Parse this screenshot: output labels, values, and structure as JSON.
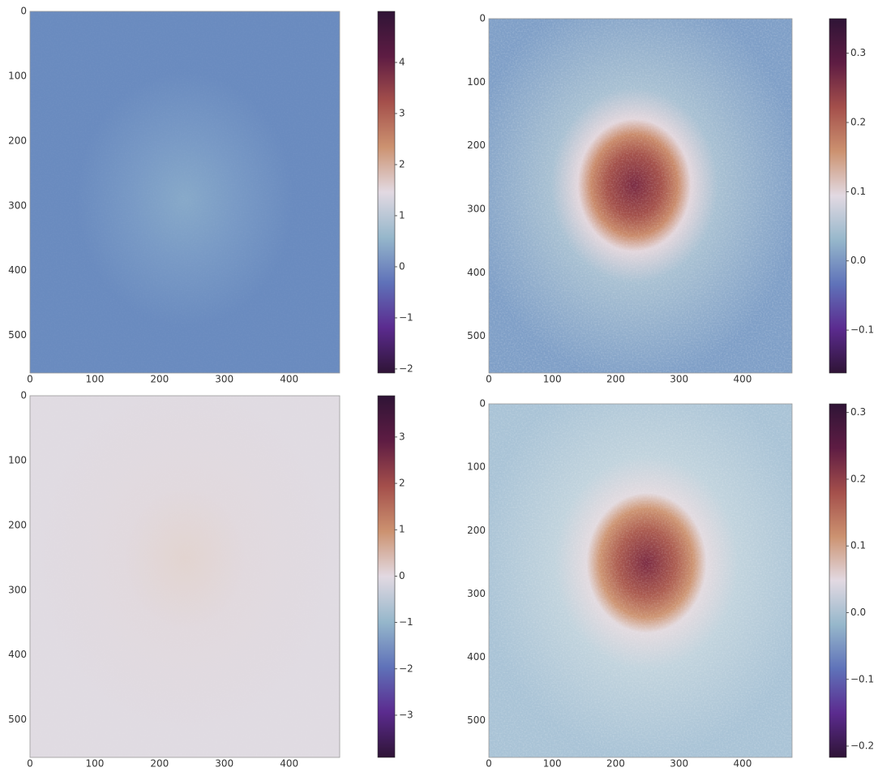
{
  "chart_data": [
    {
      "type": "heatmap",
      "y_inverted": true,
      "xlim": [
        0,
        478
      ],
      "ylim": [
        0,
        558
      ],
      "xticks": [
        0,
        100,
        200,
        300,
        400
      ],
      "yticks": [
        0,
        100,
        200,
        300,
        400,
        500
      ],
      "clim": [
        -2.08,
        5.0
      ],
      "cticks": [
        {
          "value": -2,
          "label": "−2"
        },
        {
          "value": -1,
          "label": "−1"
        },
        0,
        1,
        2,
        3,
        4
      ],
      "colormap": [
        "#2f1436",
        "#5b2b8f",
        "#5f72b9",
        "#96b7cb",
        "#e2d9e2",
        "#cc9270",
        "#a44f4b",
        "#5e1c43",
        "#2f1436"
      ]
    },
    {
      "type": "heatmap",
      "y_inverted": true,
      "xlim": [
        0,
        478
      ],
      "ylim": [
        0,
        558
      ],
      "xticks": [
        0,
        100,
        200,
        300,
        400
      ],
      "yticks": [
        0,
        100,
        200,
        300,
        400,
        500
      ],
      "clim": [
        -0.162,
        0.35
      ],
      "cticks": [
        {
          "value": -0.1,
          "label": "−0.1"
        },
        {
          "value": 0,
          "label": "0.0"
        },
        0.1,
        0.2,
        0.3
      ],
      "colormap": [
        "#2f1436",
        "#5b2b8f",
        "#5f72b9",
        "#96b7cb",
        "#e2d9e2",
        "#cc9270",
        "#a44f4b",
        "#5e1c43",
        "#2f1436"
      ]
    },
    {
      "type": "heatmap",
      "y_inverted": true,
      "xlim": [
        0,
        478
      ],
      "ylim": [
        0,
        558
      ],
      "xticks": [
        0,
        100,
        200,
        300,
        400
      ],
      "yticks": [
        0,
        100,
        200,
        300,
        400,
        500
      ],
      "clim": [
        -3.91,
        3.89
      ],
      "cticks": [
        {
          "value": -3,
          "label": "−3"
        },
        {
          "value": -2,
          "label": "−2"
        },
        {
          "value": -1,
          "label": "−1"
        },
        0,
        1,
        2,
        3
      ],
      "colormap": [
        "#2f1436",
        "#5b2b8f",
        "#5f72b9",
        "#96b7cb",
        "#e2d9e2",
        "#cc9270",
        "#a44f4b",
        "#5e1c43",
        "#2f1436"
      ]
    },
    {
      "type": "heatmap",
      "y_inverted": true,
      "xlim": [
        0,
        478
      ],
      "ylim": [
        0,
        558
      ],
      "xticks": [
        0,
        100,
        200,
        300,
        400
      ],
      "yticks": [
        0,
        100,
        200,
        300,
        400,
        500
      ],
      "clim": [
        -0.217,
        0.313
      ],
      "cticks": [
        {
          "value": -0.2,
          "label": "−0.2"
        },
        {
          "value": -0.1,
          "label": "−0.1"
        },
        {
          "value": 0,
          "label": "0.0"
        },
        0.1,
        0.2,
        0.3
      ],
      "colormap": [
        "#2f1436",
        "#5b2b8f",
        "#5f72b9",
        "#96b7cb",
        "#e2d9e2",
        "#cc9270",
        "#a44f4b",
        "#5e1c43",
        "#2f1436"
      ]
    }
  ]
}
